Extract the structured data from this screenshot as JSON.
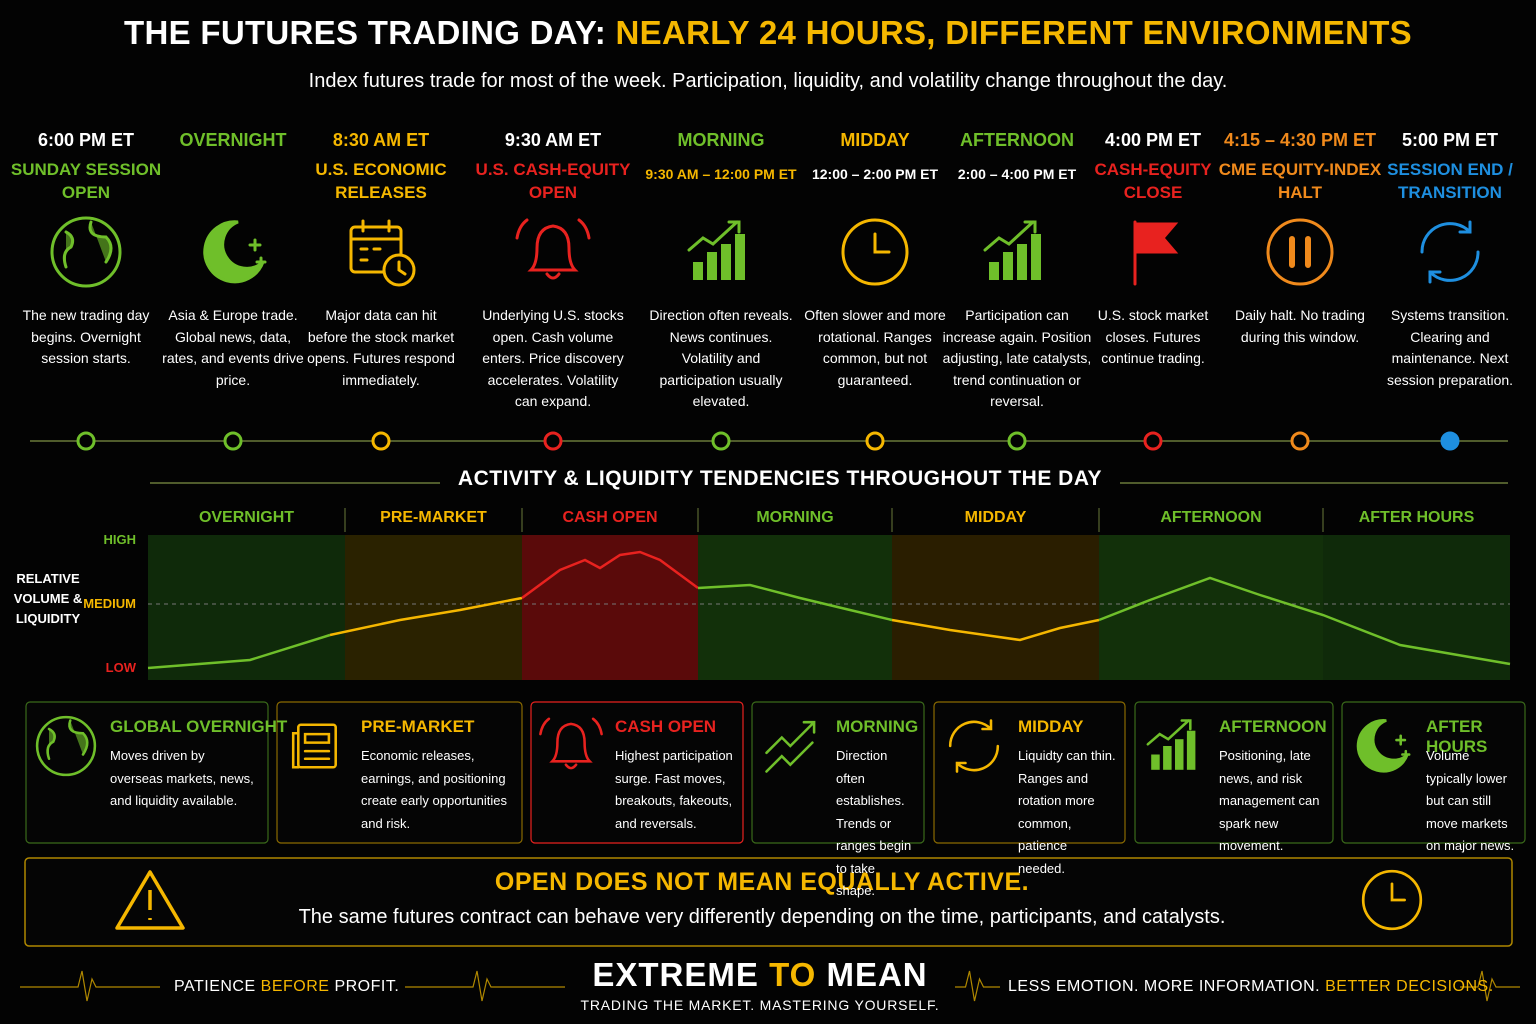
{
  "header": {
    "title_lead": "THE FUTURES TRADING DAY:",
    "title_accent": "NEARLY 24 HOURS, DIFFERENT ENVIRONMENTS",
    "subtitle": "Index futures trade for most of the week. Participation, liquidity, and volatility change throughout the day."
  },
  "timeline": [
    {
      "heading": "6:00 PM ET",
      "subheading": "SUNDAY SESSION OPEN",
      "text": "The new trading day begins. Overnight session starts."
    },
    {
      "heading": "OVERNIGHT",
      "text": "Asia & Europe trade. Global news, data, rates, and events drive price."
    },
    {
      "heading": "8:30 AM ET",
      "subheading": "U.S. ECONOMIC RELEASES",
      "text": "Major data can hit before the stock market opens. Futures respond immediately."
    },
    {
      "heading": "9:30 AM ET",
      "subheading": "U.S. CASH-EQUITY OPEN",
      "text": "Underlying U.S. stocks open. Cash volume enters. Price discovery accelerates. Volatility can expand."
    },
    {
      "heading": "MORNING",
      "subheading": "9:30 AM – 12:00 PM ET",
      "text": "Direction often reveals. News continues. Volatility and participation usually elevated."
    },
    {
      "heading": "MIDDAY",
      "subheading": "12:00 – 2:00 PM ET",
      "text": "Often slower and more rotational. Ranges common, but not guaranteed."
    },
    {
      "heading": "AFTERNOON",
      "subheading": "2:00 – 4:00 PM ET",
      "text": "Participation can increase again. Position adjusting, late catalysts, trend continuation or reversal."
    },
    {
      "heading": "4:00 PM ET",
      "subheading": "CASH-EQUITY CLOSE",
      "text": "U.S. stock market closes. Futures continue trading."
    },
    {
      "heading": "4:15 – 4:30 PM ET",
      "subheading": "CME EQUITY-INDEX HALT",
      "text": "Daily halt. No trading during this window."
    },
    {
      "heading": "5:00 PM ET",
      "subheading": "SESSION END / TRANSITION",
      "text": "Systems transition. Clearing and maintenance. Next session preparation."
    }
  ],
  "activity": {
    "title": "ACTIVITY & LIQUIDITY TENDENCIES THROUGHOUT THE DAY",
    "axis_label": "RELATIVE VOLUME & LIQUIDITY",
    "levels": [
      "HIGH",
      "MEDIUM",
      "LOW"
    ],
    "zones": [
      "OVERNIGHT",
      "PRE-MARKET",
      "CASH OPEN",
      "MORNING",
      "MIDDAY",
      "AFTERNOON",
      "AFTER HOURS"
    ]
  },
  "cards": [
    {
      "title": "GLOBAL OVERNIGHT",
      "text": "Moves driven by overseas markets, news, and liquidity available."
    },
    {
      "title": "PRE-MARKET",
      "text": "Economic releases, earnings, and positioning create early opportunities and risk."
    },
    {
      "title": "CASH OPEN",
      "text": "Highest participation surge. Fast moves, breakouts, fakeouts, and reversals."
    },
    {
      "title": "MORNING",
      "text": "Direction often establishes. Trends or ranges begin to take shape."
    },
    {
      "title": "MIDDAY",
      "text": "Liquidty can thin. Ranges and rotation more common, patience needed."
    },
    {
      "title": "AFTERNOON",
      "text": "Positioning, late news, and risk management can spark new movement."
    },
    {
      "title": "AFTER HOURS",
      "text": "Volume typically lower but can still move markets on major news."
    }
  ],
  "banner": {
    "title": "OPEN DOES NOT MEAN EQUALLY ACTIVE.",
    "text": "The same futures contract can behave very differently depending on the time, participants, and catalysts."
  },
  "footer": {
    "left": [
      "PATIENCE",
      "BEFORE",
      "PROFIT."
    ],
    "brand": [
      "EXTREME",
      "TO",
      "MEAN"
    ],
    "tagline": "TRADING THE MARKET. MASTERING YOURSELF.",
    "right": [
      "LESS EMOTION. MORE INFORMATION.",
      "BETTER DECISIONS."
    ]
  }
}
